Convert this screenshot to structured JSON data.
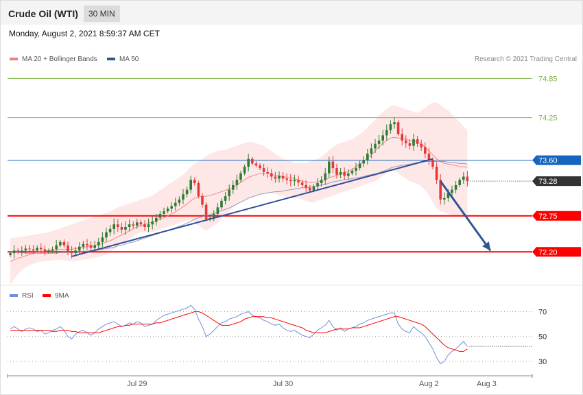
{
  "header": {
    "instrument": "Crude Oil (WTI)",
    "timeframe": "30 MIN",
    "datetime": "Monday, August 2, 2021 8:59:37 AM CET"
  },
  "legend": {
    "ma20": "MA 20 + Bollinger Bands",
    "ma50": "MA 50",
    "rsi": "RSI",
    "rsi9": "9MA",
    "credit": "Research © 2021 Trading Central"
  },
  "colors": {
    "bull": "#2e7d32",
    "bear": "#e53935",
    "ma20": "#f08080",
    "ma50": "#2f5597",
    "band": "#fde3e3",
    "resist_green": "#7cb342",
    "pivot_blue": "#1565c0",
    "support_red": "#ff0000",
    "rsi": "#6f8fd8",
    "rsi9": "#ff0000"
  },
  "chart_data": [
    {
      "type": "candlestick",
      "price_axis_min": 71.7,
      "price_axis_max": 75.0,
      "levels": [
        {
          "value": 74.85,
          "label": "74.85",
          "kind": "resistance"
        },
        {
          "value": 74.25,
          "label": "74.25",
          "kind": "resistance"
        },
        {
          "value": 73.6,
          "label": "73.60",
          "kind": "pivot"
        },
        {
          "value": 73.28,
          "label": "73.28",
          "kind": "last"
        },
        {
          "value": 72.75,
          "label": "72.75",
          "kind": "support"
        },
        {
          "value": 72.2,
          "label": "72.20",
          "kind": "support"
        }
      ],
      "x_ticks": [
        "Jul 29",
        "Jul 30",
        "Aug 2",
        "Aug 3"
      ],
      "trendline": {
        "from_bar": 16,
        "from_price": 72.13,
        "to_bar": 110,
        "to_price": 73.62
      },
      "forecast_arrow": {
        "from_bar": 112,
        "from_price": 73.28,
        "to_bar": 125,
        "to_price": 72.22
      },
      "closes": [
        72.18,
        72.22,
        72.2,
        72.22,
        72.25,
        72.24,
        72.22,
        72.26,
        72.24,
        72.2,
        72.22,
        72.24,
        72.3,
        72.35,
        72.3,
        72.2,
        72.18,
        72.22,
        72.28,
        72.32,
        72.3,
        72.26,
        72.3,
        72.35,
        72.42,
        72.5,
        72.55,
        72.62,
        72.58,
        72.54,
        72.58,
        72.62,
        72.6,
        72.65,
        72.62,
        72.58,
        72.62,
        72.66,
        72.72,
        72.78,
        72.82,
        72.86,
        72.9,
        72.95,
        73.0,
        73.08,
        73.15,
        73.3,
        73.25,
        73.05,
        72.92,
        72.7,
        72.72,
        72.78,
        72.88,
        72.98,
        73.05,
        73.15,
        73.22,
        73.3,
        73.4,
        73.5,
        73.62,
        73.55,
        73.52,
        73.48,
        73.42,
        73.4,
        73.35,
        73.32,
        73.36,
        73.32,
        73.3,
        73.28,
        73.3,
        73.26,
        73.22,
        73.18,
        73.14,
        73.2,
        73.25,
        73.3,
        73.4,
        73.58,
        73.48,
        73.38,
        73.42,
        73.36,
        73.4,
        73.44,
        73.48,
        73.55,
        73.6,
        73.7,
        73.78,
        73.85,
        73.9,
        73.98,
        74.06,
        74.15,
        74.18,
        74.0,
        73.9,
        73.86,
        73.82,
        73.92,
        73.85,
        73.8,
        73.7,
        73.6,
        73.5,
        73.3,
        73.0,
        73.02,
        73.1,
        73.15,
        73.22,
        73.3,
        73.35,
        73.28
      ],
      "bollinger_upper": [
        72.4,
        72.42,
        72.42,
        72.43,
        72.44,
        72.45,
        72.46,
        72.47,
        72.48,
        72.49,
        72.5,
        72.52,
        72.54,
        72.56,
        72.58,
        72.6,
        72.62,
        72.64,
        72.66,
        72.68,
        72.7,
        72.72,
        72.74,
        72.76,
        72.78,
        72.8,
        72.82,
        72.85,
        72.88,
        72.9,
        72.92,
        72.94,
        72.96,
        72.98,
        73.0,
        73.02,
        73.04,
        73.06,
        73.1,
        73.14,
        73.18,
        73.22,
        73.26,
        73.3,
        73.34,
        73.38,
        73.44,
        73.5,
        73.55,
        73.58,
        73.62,
        73.66,
        73.7,
        73.72,
        73.74,
        73.75,
        73.76,
        73.78,
        73.8,
        73.82,
        73.84,
        73.86,
        73.88,
        73.88,
        73.86,
        73.84,
        73.82,
        73.78,
        73.74,
        73.7,
        73.66,
        73.62,
        73.6,
        73.58,
        73.56,
        73.56,
        73.55,
        73.56,
        73.58,
        73.6,
        73.62,
        73.65,
        73.7,
        73.76,
        73.8,
        73.84,
        73.86,
        73.88,
        73.9,
        73.92,
        73.96,
        74.0,
        74.04,
        74.1,
        74.16,
        74.22,
        74.28,
        74.34,
        74.38,
        74.42,
        74.44,
        74.42,
        74.4,
        74.38,
        74.36,
        74.34,
        74.32,
        74.36,
        74.4,
        74.45,
        74.48,
        74.48,
        74.44,
        74.4,
        74.36,
        74.3,
        74.24,
        74.18,
        74.12,
        74.06
      ],
      "bollinger_lower": [
        71.7,
        71.78,
        71.86,
        71.92,
        71.96,
        72.0,
        72.02,
        72.04,
        72.05,
        72.06,
        72.06,
        72.07,
        72.08,
        72.08,
        72.07,
        72.06,
        72.06,
        72.06,
        72.07,
        72.08,
        72.09,
        72.1,
        72.11,
        72.12,
        72.14,
        72.16,
        72.2,
        72.24,
        72.28,
        72.32,
        72.36,
        72.4,
        72.44,
        72.48,
        72.5,
        72.5,
        72.5,
        72.5,
        72.52,
        72.54,
        72.56,
        72.58,
        72.6,
        72.62,
        72.64,
        72.66,
        72.68,
        72.7,
        72.66,
        72.6,
        72.56,
        72.52,
        72.56,
        72.6,
        72.64,
        72.7,
        72.76,
        72.82,
        72.88,
        72.92,
        72.96,
        73.0,
        73.02,
        73.04,
        73.06,
        73.08,
        73.1,
        73.1,
        73.1,
        73.08,
        73.06,
        73.06,
        73.04,
        73.02,
        73.02,
        73.02,
        73.0,
        72.98,
        72.96,
        72.96,
        72.98,
        73.0,
        73.02,
        73.04,
        73.06,
        73.08,
        73.1,
        73.12,
        73.14,
        73.16,
        73.18,
        73.2,
        73.22,
        73.24,
        73.26,
        73.28,
        73.32,
        73.36,
        73.4,
        73.44,
        73.44,
        73.4,
        73.36,
        73.32,
        73.28,
        73.26,
        73.24,
        73.2,
        73.14,
        73.06,
        72.96,
        72.86,
        72.82,
        72.8,
        72.78,
        72.76,
        72.76,
        72.76,
        72.76,
        72.76
      ],
      "ma20": [
        72.05,
        72.08,
        72.1,
        72.12,
        72.14,
        72.16,
        72.18,
        72.2,
        72.2,
        72.21,
        72.22,
        72.22,
        72.23,
        72.24,
        72.24,
        72.24,
        72.24,
        72.25,
        72.26,
        72.27,
        72.28,
        72.29,
        72.3,
        72.31,
        72.33,
        72.35,
        72.37,
        72.4,
        72.43,
        72.46,
        72.49,
        72.52,
        72.55,
        72.58,
        72.6,
        72.62,
        72.64,
        72.66,
        72.68,
        72.7,
        72.72,
        72.75,
        72.78,
        72.81,
        72.85,
        72.89,
        72.93,
        72.98,
        73.02,
        73.04,
        73.05,
        73.05,
        73.06,
        73.08,
        73.1,
        73.12,
        73.14,
        73.16,
        73.18,
        73.22,
        73.26,
        73.3,
        73.34,
        73.36,
        73.38,
        73.4,
        73.4,
        73.4,
        73.38,
        73.37,
        73.36,
        73.35,
        73.34,
        73.33,
        73.32,
        73.3,
        73.28,
        73.27,
        73.26,
        73.26,
        73.27,
        73.28,
        73.3,
        73.33,
        73.35,
        73.37,
        73.39,
        73.41,
        73.43,
        73.46,
        73.5,
        73.54,
        73.58,
        73.63,
        73.68,
        73.74,
        73.8,
        73.86,
        73.9,
        73.94,
        73.95,
        73.94,
        73.93,
        73.92,
        73.9,
        73.89,
        73.88,
        73.85,
        73.8,
        73.74,
        73.68,
        73.62,
        73.58,
        73.55,
        73.54,
        73.53,
        73.52,
        73.5,
        73.5,
        73.49
      ],
      "ma50": [
        72.2,
        72.2,
        72.19,
        72.19,
        72.18,
        72.18,
        72.18,
        72.18,
        72.18,
        72.18,
        72.18,
        72.18,
        72.18,
        72.19,
        72.19,
        72.19,
        72.19,
        72.2,
        72.2,
        72.21,
        72.21,
        72.22,
        72.22,
        72.23,
        72.24,
        72.25,
        72.26,
        72.27,
        72.29,
        72.3,
        72.32,
        72.34,
        72.35,
        72.37,
        72.39,
        72.41,
        72.43,
        72.45,
        72.47,
        72.49,
        72.51,
        72.53,
        72.55,
        72.57,
        72.59,
        72.61,
        72.64,
        72.67,
        72.7,
        72.72,
        72.74,
        72.75,
        72.77,
        72.79,
        72.81,
        72.83,
        72.85,
        72.87,
        72.9,
        72.93,
        72.96,
        72.99,
        73.02,
        73.04,
        73.06,
        73.08,
        73.09,
        73.1,
        73.11,
        73.12,
        73.12,
        73.13,
        73.14,
        73.15,
        73.16,
        73.17,
        73.18,
        73.18,
        73.19,
        73.2,
        73.21,
        73.22,
        73.23,
        73.25,
        73.27,
        73.28,
        73.29,
        73.3,
        73.31,
        73.32,
        73.33,
        73.34,
        73.35,
        73.37,
        73.38,
        73.39,
        73.41,
        73.43,
        73.45,
        73.48,
        73.5,
        73.51,
        73.52,
        73.53,
        73.54,
        73.55,
        73.56,
        73.57,
        73.58,
        73.58,
        73.58,
        73.58,
        73.58,
        73.58,
        73.57,
        73.57,
        73.56,
        73.55,
        73.55,
        73.54
      ]
    },
    {
      "type": "line",
      "title": "RSI",
      "y_ticks": [
        70,
        50,
        30
      ],
      "ylim": [
        20,
        78
      ],
      "series": [
        {
          "name": "RSI",
          "values": [
            56,
            58,
            56,
            54,
            56,
            57,
            56,
            54,
            55,
            52,
            53,
            55,
            56,
            58,
            55,
            50,
            48,
            52,
            54,
            55,
            53,
            51,
            53,
            56,
            58,
            60,
            61,
            62,
            60,
            58,
            59,
            61,
            60,
            62,
            61,
            58,
            59,
            60,
            63,
            65,
            67,
            68,
            69,
            70,
            71,
            72,
            73,
            75,
            72,
            64,
            58,
            50,
            52,
            55,
            58,
            61,
            62,
            64,
            65,
            66,
            68,
            69,
            70,
            67,
            66,
            65,
            63,
            62,
            60,
            59,
            60,
            57,
            55,
            54,
            55,
            53,
            51,
            50,
            49,
            52,
            55,
            57,
            59,
            63,
            58,
            55,
            57,
            54,
            56,
            57,
            58,
            60,
            61,
            63,
            64,
            65,
            66,
            67,
            68,
            69,
            69,
            60,
            56,
            54,
            53,
            58,
            55,
            53,
            50,
            45,
            40,
            33,
            28,
            30,
            35,
            38,
            40,
            43,
            46,
            42
          ]
        },
        {
          "name": "9MA",
          "values": [
            55,
            55,
            55,
            55,
            55,
            55,
            55,
            55,
            55,
            55,
            55,
            54,
            54,
            55,
            55,
            55,
            54,
            54,
            53,
            53,
            53,
            53,
            53,
            53,
            54,
            55,
            56,
            57,
            58,
            58,
            59,
            59,
            60,
            60,
            60,
            60,
            60,
            60,
            61,
            61,
            62,
            63,
            64,
            65,
            66,
            67,
            68,
            69,
            70,
            70,
            69,
            67,
            65,
            63,
            61,
            59,
            59,
            59,
            60,
            61,
            62,
            64,
            65,
            66,
            66,
            66,
            66,
            65,
            65,
            64,
            63,
            62,
            61,
            60,
            59,
            58,
            57,
            55,
            54,
            53,
            53,
            53,
            53,
            54,
            55,
            56,
            56,
            56,
            56,
            57,
            57,
            57,
            58,
            59,
            60,
            61,
            62,
            63,
            64,
            65,
            66,
            66,
            65,
            64,
            63,
            62,
            61,
            60,
            58,
            55,
            52,
            49,
            46,
            43,
            41,
            40,
            39,
            38,
            38,
            40
          ]
        }
      ]
    }
  ]
}
